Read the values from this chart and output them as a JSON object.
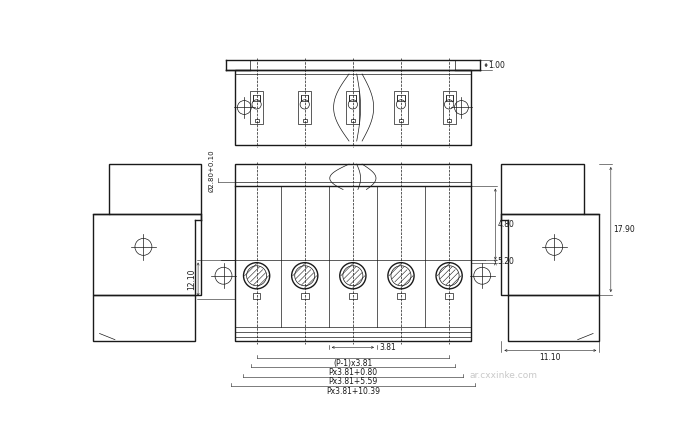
{
  "bg_color": "#ffffff",
  "line_color": "#1a1a1a",
  "thin_lw": 0.5,
  "thick_lw": 1.0,
  "dim_lw": 0.4,
  "figsize": [
    6.84,
    4.37
  ],
  "dpi": 100,
  "watermark": "ar.cxxinke.com",
  "n_pins": 5,
  "dims": {
    "top_dim": "1.00",
    "left_dim": "12.10",
    "hole_dim": "Ø2.80+0.10",
    "right_height": "17.90",
    "right_width": "11.10",
    "dim_480": "4.80",
    "dim_520": "5.20",
    "dim_381": "3.81",
    "formula1": "(P-1)x3.81",
    "formula2": "Px3.81+0.80",
    "formula3": "Px3.81+5.59",
    "formula4": "Px3.81+10.39"
  }
}
